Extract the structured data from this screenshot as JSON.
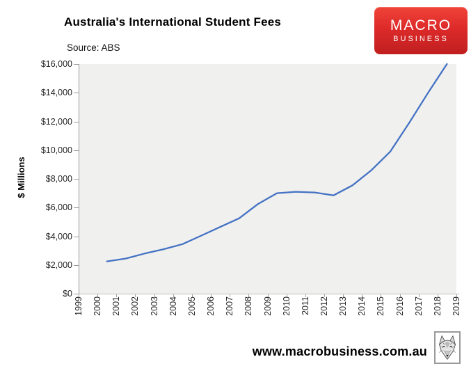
{
  "header": {
    "title": "Australia's International Student Fees",
    "source": "Source: ABS",
    "logo": {
      "line1": "MACRO",
      "line2": "BUSINESS",
      "bg_top": "#f04438",
      "bg_mid": "#dd2a2a",
      "bg_bottom": "#c01f1f",
      "text_color": "#ffffff"
    }
  },
  "chart_data": {
    "type": "line",
    "title": "Australia's International Student Fees",
    "source": "ABS",
    "xlabel": "",
    "ylabel": "$ Millions",
    "xlim": [
      1999,
      2019
    ],
    "ylim": [
      0,
      16000
    ],
    "grid": false,
    "legend": "none",
    "plot_bg": "#f0f0ee",
    "line_color": "#4472c4",
    "x_tick_labels": [
      "1999",
      "2000",
      "2001",
      "2002",
      "2003",
      "2004",
      "2005",
      "2006",
      "2007",
      "2008",
      "2009",
      "2010",
      "2011",
      "2012",
      "2013",
      "2014",
      "2015",
      "2016",
      "2017",
      "2018",
      "2019"
    ],
    "y_tick_values": [
      0,
      2000,
      4000,
      6000,
      8000,
      10000,
      12000,
      14000,
      16000
    ],
    "y_tick_labels": [
      "$0",
      "$2,000",
      "$4,000",
      "$6,000",
      "$8,000",
      "$10,000",
      "$12,000",
      "$14,000",
      "$16,000"
    ],
    "series": [
      {
        "name": "Australia's international student fees ($ millions)",
        "x": [
          2000.5,
          2001.5,
          2002.5,
          2003.5,
          2004.5,
          2005.5,
          2006.5,
          2007.5,
          2008.5,
          2009.5,
          2010.5,
          2011.5,
          2012.5,
          2013.5,
          2014.5,
          2015.5,
          2016.5,
          2017.5,
          2018.5
        ],
        "values": [
          2250,
          2450,
          2800,
          3100,
          3450,
          4050,
          4650,
          5250,
          6250,
          7000,
          7100,
          7050,
          6850,
          7550,
          8600,
          9900,
          11900,
          14000,
          16000
        ]
      }
    ]
  },
  "footer": {
    "url": "www.macrobusiness.com.au",
    "logo_icon": "wolf-logo"
  }
}
